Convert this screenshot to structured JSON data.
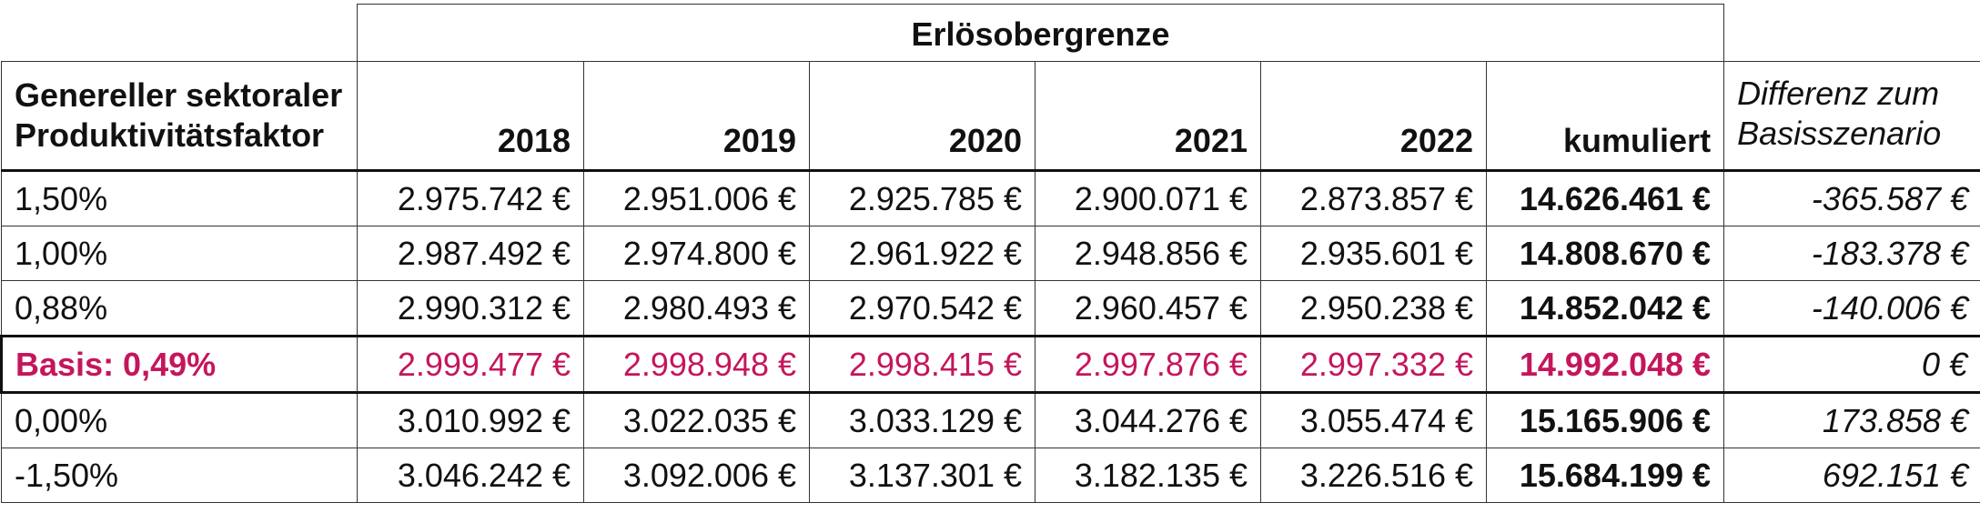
{
  "table": {
    "group_header": "Erlösobergrenze",
    "header": {
      "factor_line1": "Genereller sektoraler",
      "factor_line2": "Produktivitätsfaktor",
      "years": [
        "2018",
        "2019",
        "2020",
        "2021",
        "2022"
      ],
      "cumulative": "kumuliert",
      "diff_line1": "Differenz zum",
      "diff_line2": "Basisszenario"
    },
    "rows": [
      {
        "factor": "1,50%",
        "values": [
          "2.975.742 €",
          "2.951.006 €",
          "2.925.785 €",
          "2.900.071 €",
          "2.873.857 €"
        ],
        "cumulative": "14.626.461 €",
        "diff": "-365.587 €"
      },
      {
        "factor": "1,00%",
        "values": [
          "2.987.492 €",
          "2.974.800 €",
          "2.961.922 €",
          "2.948.856 €",
          "2.935.601 €"
        ],
        "cumulative": "14.808.670 €",
        "diff": "-183.378 €"
      },
      {
        "factor": "0,88%",
        "values": [
          "2.990.312 €",
          "2.980.493 €",
          "2.970.542 €",
          "2.960.457 €",
          "2.950.238 €"
        ],
        "cumulative": "14.852.042 €",
        "diff": "-140.006 €"
      },
      {
        "factor": "Basis: 0,49%",
        "values": [
          "2.999.477 €",
          "2.998.948 €",
          "2.998.415 €",
          "2.997.876 €",
          "2.997.332 €"
        ],
        "cumulative": "14.992.048 €",
        "diff": "0 €"
      },
      {
        "factor": "0,00%",
        "values": [
          "3.010.992 €",
          "3.022.035 €",
          "3.033.129 €",
          "3.044.276 €",
          "3.055.474 €"
        ],
        "cumulative": "15.165.906 €",
        "diff": "173.858 €"
      },
      {
        "factor": "-1,50%",
        "values": [
          "3.046.242 €",
          "3.092.006 €",
          "3.137.301 €",
          "3.182.135 €",
          "3.226.516 €"
        ],
        "cumulative": "15.684.199 €",
        "diff": "692.151 €"
      }
    ],
    "highlight_color": "#c4165c"
  }
}
